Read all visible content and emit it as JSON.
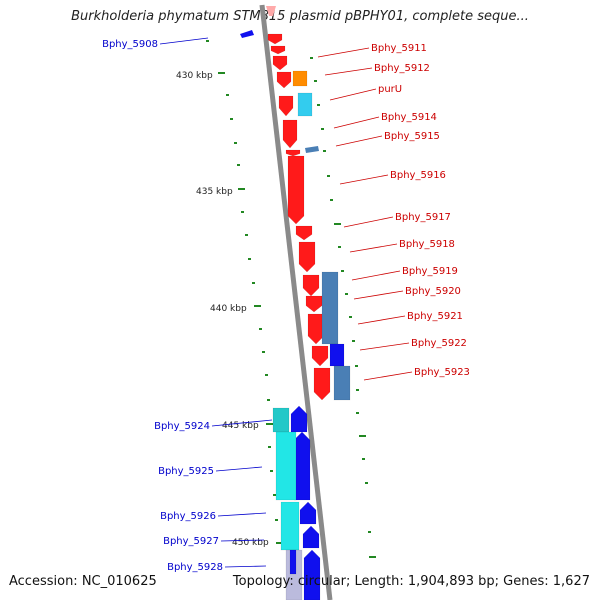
{
  "title": "Burkholderia phymatum STM815 plasmid pBPHY01, complete seque...",
  "footer": {
    "accession": "Accession: NC_010625",
    "topology": "Topology: circular; Length: 1,904,893 bp; Genes: 1,627"
  },
  "colors": {
    "backbone": "#8a8a8a",
    "forward_red": "#ff1a1a",
    "orange": "#ff8c00",
    "cyan": "#33ccee",
    "steel": "#4a7fb5",
    "blue": "#1010ee",
    "teal": "#22c8c8",
    "label_red": "#cc0000",
    "label_blue": "#0000cc",
    "tick_green": "#228822"
  },
  "scale_labels": [
    "430 kbp",
    "435 kbp",
    "440 kbp",
    "445 kbp",
    "450 kbp"
  ],
  "gene_labels_right": [
    "Bphy_5911",
    "Bphy_5912",
    "purU",
    "Bphy_5914",
    "Bphy_5915",
    "Bphy_5916",
    "Bphy_5917",
    "Bphy_5918",
    "Bphy_5919",
    "Bphy_5920",
    "Bphy_5921",
    "Bphy_5922",
    "Bphy_5923"
  ],
  "gene_labels_left": [
    "Bphy_5908",
    "Bphy_5924",
    "Bphy_5925",
    "Bphy_5926",
    "Bphy_5927",
    "Bphy_5928"
  ]
}
